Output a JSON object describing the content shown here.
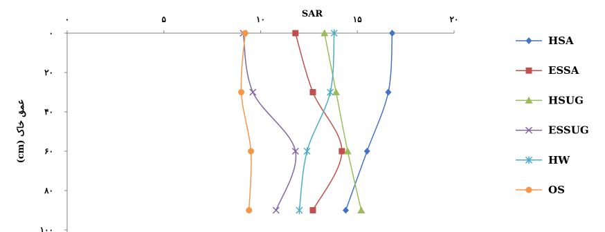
{
  "chart_data": {
    "type": "line",
    "title": "",
    "xlabel": "SAR",
    "ylabel": "عمق خاک (cm)",
    "x_axis_position": "top",
    "y_axis_inverted": true,
    "xlim": [
      0,
      20
    ],
    "ylim": [
      0,
      100
    ],
    "x_ticks": [
      0,
      5,
      10,
      15,
      20
    ],
    "x_tick_labels": [
      "۰",
      "۵",
      "۱۰",
      "۱۵",
      "۲۰"
    ],
    "y_ticks": [
      0,
      20,
      40,
      60,
      80,
      100
    ],
    "y_tick_labels": [
      "۰",
      "۲۰",
      "۴۰",
      "۶۰",
      "۸۰",
      "۱۰۰"
    ],
    "grid": false,
    "legend_position": "right",
    "depths": [
      0,
      30,
      60,
      90
    ],
    "series": [
      {
        "name": "HSA",
        "color": "#4472C4",
        "marker": "diamond",
        "values": [
          16.8,
          16.6,
          15.5,
          14.4
        ]
      },
      {
        "name": "ESSA",
        "color": "#C0504D",
        "marker": "square",
        "values": [
          11.8,
          12.7,
          14.2,
          12.7
        ]
      },
      {
        "name": "HSUG",
        "color": "#9BBB59",
        "marker": "triangle",
        "values": [
          13.3,
          13.9,
          14.5,
          15.2
        ]
      },
      {
        "name": "ESSUG",
        "color": "#8064A2",
        "marker": "x",
        "values": [
          9.1,
          9.6,
          11.8,
          10.8
        ]
      },
      {
        "name": "HW",
        "color": "#4BACC6",
        "marker": "star",
        "values": [
          13.8,
          13.6,
          12.4,
          12.0
        ]
      },
      {
        "name": "OS",
        "color": "#F79646",
        "marker": "circle",
        "values": [
          9.2,
          9.0,
          9.5,
          9.4
        ]
      }
    ]
  }
}
